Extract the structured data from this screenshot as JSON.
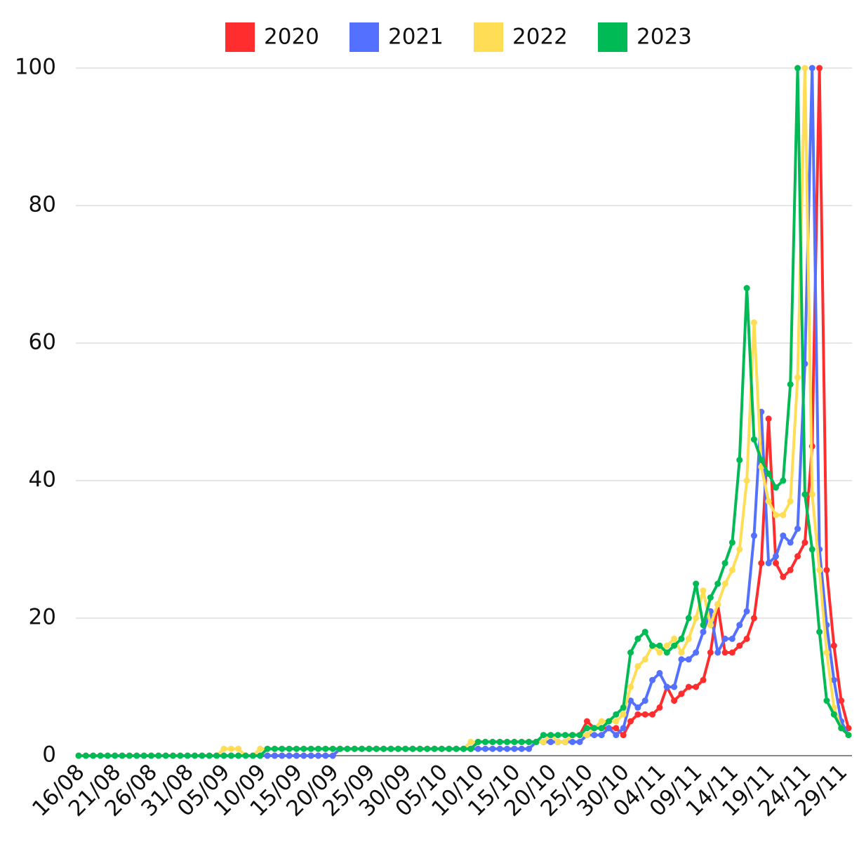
{
  "chart_data": {
    "type": "line",
    "categories": [
      "16/08",
      null,
      null,
      null,
      null,
      "21/08",
      null,
      null,
      null,
      null,
      "26/08",
      null,
      null,
      null,
      null,
      "31/08",
      null,
      null,
      null,
      null,
      "05/09",
      null,
      null,
      null,
      null,
      "10/09",
      null,
      null,
      null,
      null,
      "15/09",
      null,
      null,
      null,
      null,
      "20/09",
      null,
      null,
      null,
      null,
      "25/09",
      null,
      null,
      null,
      null,
      "30/09",
      null,
      null,
      null,
      null,
      "05/10",
      null,
      null,
      null,
      null,
      "10/10",
      null,
      null,
      null,
      null,
      "15/10",
      null,
      null,
      null,
      null,
      "20/10",
      null,
      null,
      null,
      null,
      "25/10",
      null,
      null,
      null,
      null,
      "30/10",
      null,
      null,
      null,
      null,
      "04/11",
      null,
      null,
      null,
      null,
      "09/11",
      null,
      null,
      null,
      null,
      "14/11",
      null,
      null,
      null,
      null,
      "19/11",
      null,
      null,
      null,
      null,
      "24/11",
      null,
      null,
      null,
      null,
      "29/11",
      null
    ],
    "series": [
      {
        "name": "2020",
        "color": "#ff2d2d",
        "values": [
          0,
          0,
          0,
          0,
          0,
          0,
          0,
          0,
          0,
          0,
          0,
          0,
          0,
          0,
          0,
          0,
          0,
          0,
          0,
          0,
          0,
          0,
          0,
          0,
          0,
          0,
          0,
          0,
          0,
          0,
          0,
          0,
          0,
          0,
          0,
          0,
          1,
          1,
          1,
          1,
          1,
          1,
          1,
          1,
          1,
          1,
          1,
          1,
          1,
          1,
          1,
          1,
          1,
          1,
          1,
          2,
          2,
          2,
          2,
          2,
          2,
          2,
          2,
          2,
          2,
          2,
          2,
          2,
          3,
          3,
          5,
          4,
          4,
          4,
          4,
          3,
          5,
          6,
          6,
          6,
          7,
          10,
          8,
          9,
          10,
          10,
          11,
          15,
          22,
          15,
          15,
          16,
          17,
          20,
          28,
          49,
          28,
          26,
          27,
          29,
          31,
          45,
          100,
          27,
          16,
          8,
          4
        ]
      },
      {
        "name": "2021",
        "color": "#5470ff",
        "values": [
          0,
          0,
          0,
          0,
          0,
          0,
          0,
          0,
          0,
          0,
          0,
          0,
          0,
          0,
          0,
          0,
          0,
          0,
          0,
          0,
          0,
          0,
          0,
          0,
          0,
          0,
          0,
          0,
          0,
          0,
          0,
          0,
          0,
          0,
          0,
          0,
          1,
          1,
          1,
          1,
          1,
          1,
          1,
          1,
          1,
          1,
          1,
          1,
          1,
          1,
          1,
          1,
          1,
          1,
          1,
          1,
          1,
          1,
          1,
          1,
          1,
          1,
          1,
          2,
          2,
          2,
          2,
          2,
          2,
          2,
          3,
          3,
          3,
          4,
          3,
          4,
          8,
          7,
          8,
          11,
          12,
          10,
          10,
          14,
          14,
          15,
          18,
          21,
          15,
          17,
          17,
          19,
          21,
          32,
          50,
          28,
          29,
          32,
          31,
          33,
          57,
          100,
          30,
          19,
          11,
          5,
          3
        ]
      },
      {
        "name": "2022",
        "color": "#ffdd55",
        "values": [
          0,
          0,
          0,
          0,
          0,
          0,
          0,
          0,
          0,
          0,
          0,
          0,
          0,
          0,
          0,
          0,
          0,
          0,
          0,
          0,
          1,
          1,
          1,
          0,
          0,
          1,
          1,
          1,
          1,
          1,
          1,
          1,
          1,
          1,
          1,
          1,
          1,
          1,
          1,
          1,
          1,
          1,
          1,
          1,
          1,
          1,
          1,
          1,
          1,
          1,
          1,
          1,
          1,
          1,
          2,
          2,
          2,
          2,
          2,
          2,
          2,
          2,
          2,
          2,
          2,
          3,
          2,
          2,
          3,
          3,
          3,
          4,
          5,
          5,
          5,
          6,
          10,
          13,
          14,
          16,
          15,
          16,
          17,
          15,
          17,
          20,
          24,
          19,
          22,
          25,
          27,
          30,
          40,
          63,
          42,
          37,
          35,
          35,
          37,
          55,
          100,
          38,
          27,
          15,
          7,
          4,
          3
        ]
      },
      {
        "name": "2023",
        "color": "#00bb55",
        "values": [
          0,
          0,
          0,
          0,
          0,
          0,
          0,
          0,
          0,
          0,
          0,
          0,
          0,
          0,
          0,
          0,
          0,
          0,
          0,
          0,
          0,
          0,
          0,
          0,
          0,
          0,
          1,
          1,
          1,
          1,
          1,
          1,
          1,
          1,
          1,
          1,
          1,
          1,
          1,
          1,
          1,
          1,
          1,
          1,
          1,
          1,
          1,
          1,
          1,
          1,
          1,
          1,
          1,
          1,
          1,
          2,
          2,
          2,
          2,
          2,
          2,
          2,
          2,
          2,
          3,
          3,
          3,
          3,
          3,
          3,
          4,
          4,
          4,
          5,
          6,
          7,
          15,
          17,
          18,
          16,
          16,
          15,
          16,
          17,
          20,
          25,
          19,
          23,
          25,
          28,
          31,
          43,
          68,
          46,
          43,
          41,
          39,
          40,
          54,
          100,
          38,
          30,
          18,
          8,
          6,
          4,
          3
        ]
      }
    ],
    "ylim": [
      0,
      100
    ],
    "yticks": [
      0,
      20,
      40,
      60,
      80,
      100
    ],
    "grid": true,
    "legend": "top"
  }
}
